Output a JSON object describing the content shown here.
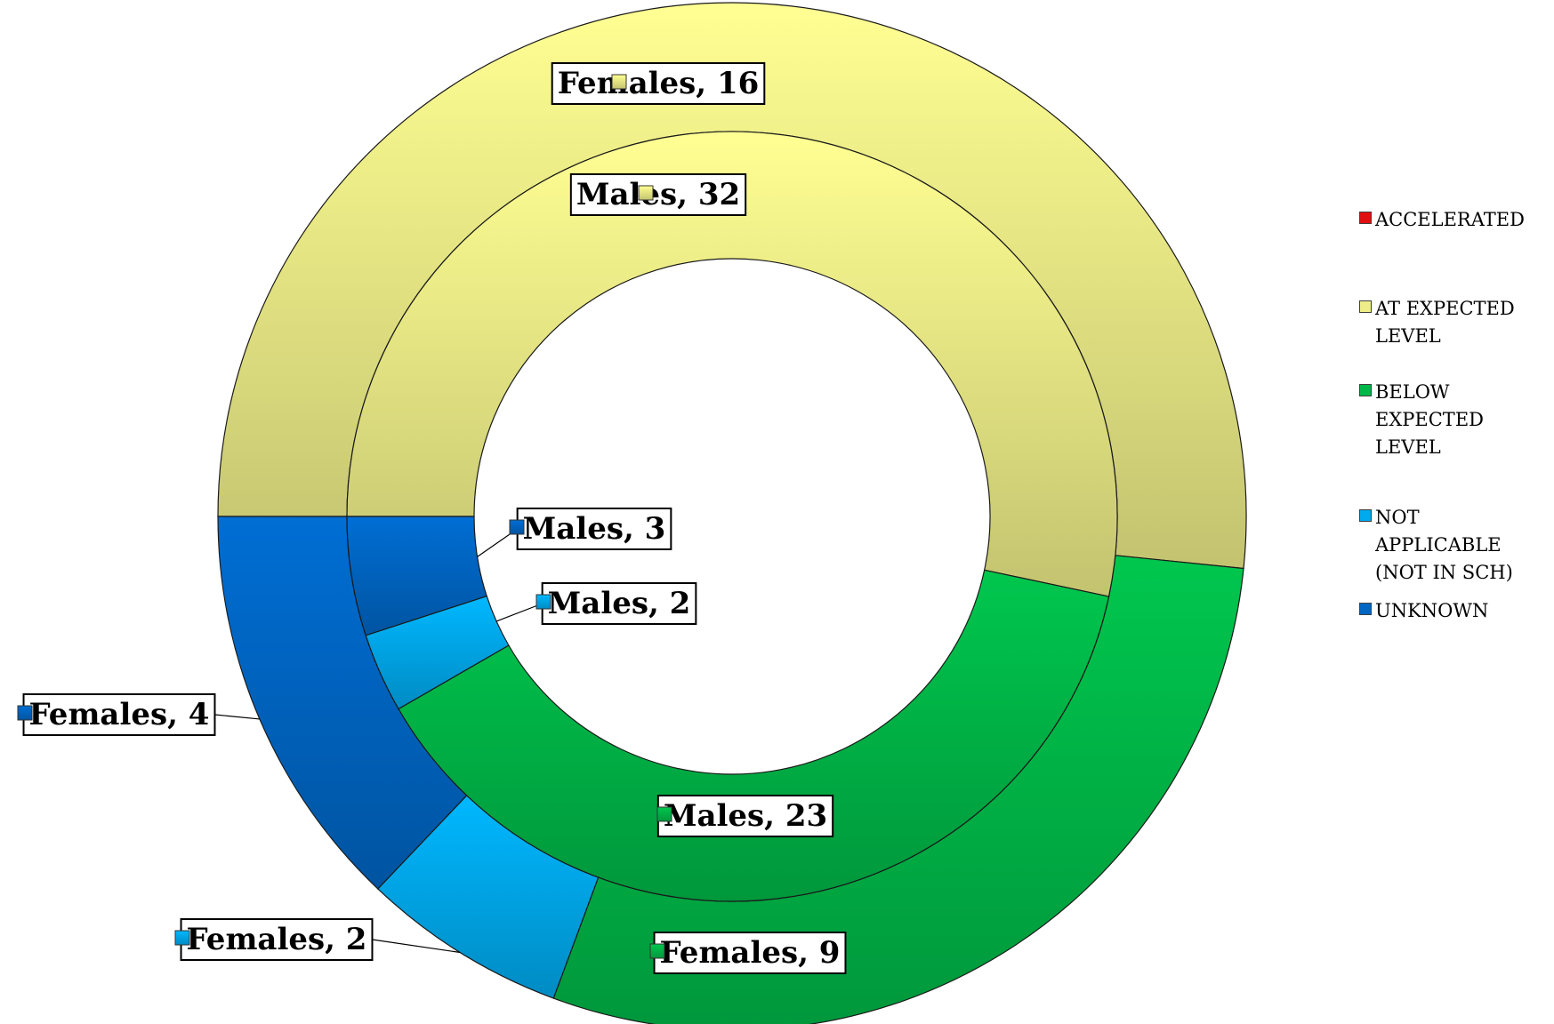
{
  "chart_data": {
    "type": "pie",
    "subtype": "doughnut",
    "legend_position": "right",
    "categories": [
      "ACCELERATED",
      "AT EXPECTED LEVEL",
      "BELOW EXPECTED LEVEL",
      "NOT APPLICABLE (NOT IN SCH)",
      "UNKNOWN"
    ],
    "colors": [
      "#e01010",
      "#eeee88",
      "#00b848",
      "#00aaee",
      "#0066c4"
    ],
    "series": [
      {
        "name": "Males",
        "values": [
          0,
          32,
          23,
          2,
          3
        ]
      },
      {
        "name": "Females",
        "values": [
          0,
          16,
          9,
          2,
          4
        ]
      }
    ],
    "data_labels": [
      {
        "text": "Females, 16",
        "series": 1,
        "category": 1
      },
      {
        "text": "Males, 32",
        "series": 0,
        "category": 1
      },
      {
        "text": "Males, 3",
        "series": 0,
        "category": 4
      },
      {
        "text": "Males, 2",
        "series": 0,
        "category": 3
      },
      {
        "text": "Females, 4",
        "series": 1,
        "category": 4
      },
      {
        "text": "Males, 23",
        "series": 0,
        "category": 2
      },
      {
        "text": "Females, 2",
        "series": 1,
        "category": 3
      },
      {
        "text": "Females, 9",
        "series": 1,
        "category": 2
      }
    ]
  }
}
